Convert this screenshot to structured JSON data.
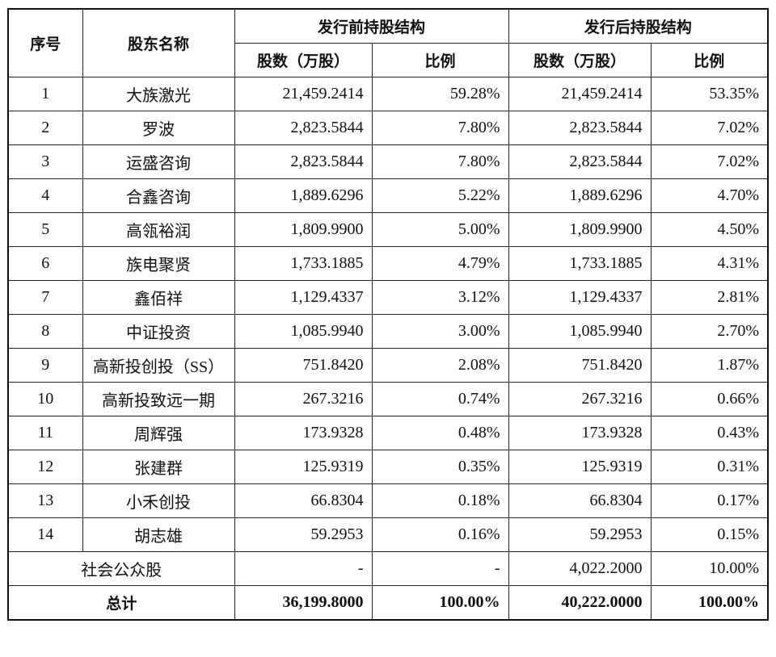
{
  "table": {
    "header": {
      "index": "序号",
      "name": "股东名称",
      "before": "发行前持股结构",
      "after": "发行后持股结构",
      "sub": [
        "股数（万股）",
        "比例",
        "股数（万股）",
        "比例"
      ]
    },
    "rows": [
      [
        "1",
        "大族激光",
        "21,459.2414",
        "59.28%",
        "21,459.2414",
        "53.35%"
      ],
      [
        "2",
        "罗波",
        "2,823.5844",
        "7.80%",
        "2,823.5844",
        "7.02%"
      ],
      [
        "3",
        "运盛咨询",
        "2,823.5844",
        "7.80%",
        "2,823.5844",
        "7.02%"
      ],
      [
        "4",
        "合鑫咨询",
        "1,889.6296",
        "5.22%",
        "1,889.6296",
        "4.70%"
      ],
      [
        "5",
        "高瓴裕润",
        "1,809.9900",
        "5.00%",
        "1,809.9900",
        "4.50%"
      ],
      [
        "6",
        "族电聚贤",
        "1,733.1885",
        "4.79%",
        "1,733.1885",
        "4.31%"
      ],
      [
        "7",
        "鑫佰祥",
        "1,129.4337",
        "3.12%",
        "1,129.4337",
        "2.81%"
      ],
      [
        "8",
        "中证投资",
        "1,085.9940",
        "3.00%",
        "1,085.9940",
        "2.70%"
      ],
      [
        "9",
        "高新投创投（SS）",
        "751.8420",
        "2.08%",
        "751.8420",
        "1.87%"
      ],
      [
        "10",
        "高新投致远一期",
        "267.3216",
        "0.74%",
        "267.3216",
        "0.66%"
      ],
      [
        "11",
        "周辉强",
        "173.9328",
        "0.48%",
        "173.9328",
        "0.43%"
      ],
      [
        "12",
        "张建群",
        "125.9319",
        "0.35%",
        "125.9319",
        "0.31%"
      ],
      [
        "13",
        "小禾创投",
        "66.8304",
        "0.18%",
        "66.8304",
        "0.17%"
      ],
      [
        "14",
        "胡志雄",
        "59.2953",
        "0.16%",
        "59.2953",
        "0.15%"
      ]
    ],
    "public": [
      "社会公众股",
      "-",
      "-",
      "4,022.2000",
      "10.00%"
    ],
    "total": [
      "总计",
      "36,199.8000",
      "100.00%",
      "40,222.0000",
      "100.00%"
    ]
  }
}
